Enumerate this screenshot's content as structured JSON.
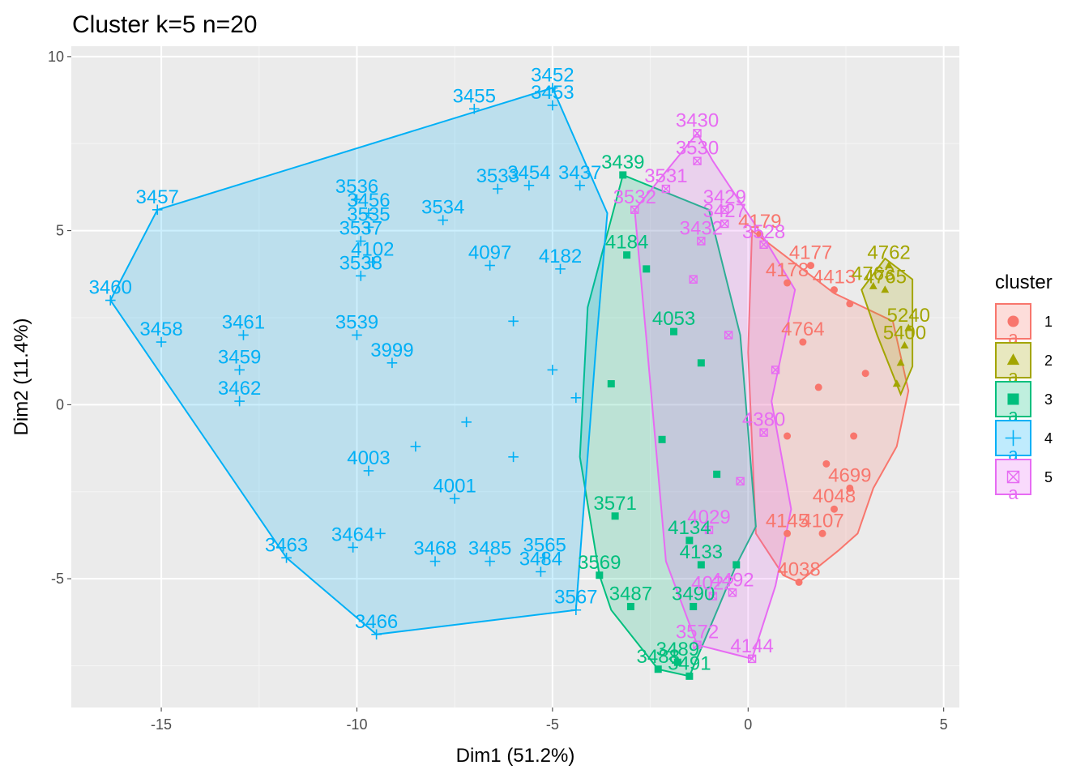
{
  "chart_data": {
    "type": "scatter",
    "title": "Cluster k=5 n=20",
    "xlabel": "Dim1 (51.2%)",
    "ylabel": "Dim2 (11.4%)",
    "xlim": [
      -17.3,
      5.4
    ],
    "ylim": [
      -8.7,
      10.3
    ],
    "xticks": [
      -15,
      -10,
      -5,
      0,
      5
    ],
    "yticks": [
      -5,
      0,
      5,
      10
    ],
    "grid": true,
    "legend": {
      "title": "cluster",
      "position": "right",
      "items": [
        {
          "key": "1",
          "color": "#F8766D",
          "shape": "circle"
        },
        {
          "key": "2",
          "color": "#A3A500",
          "shape": "triangle"
        },
        {
          "key": "3",
          "color": "#00BF7D",
          "shape": "square"
        },
        {
          "key": "4",
          "color": "#00B0F6",
          "shape": "plus"
        },
        {
          "key": "5",
          "color": "#E76BF3",
          "shape": "boxx"
        }
      ],
      "glyph_letter": "a"
    },
    "clusters": [
      {
        "id": "1",
        "hull": [
          [
            0.1,
            5.0
          ],
          [
            2.2,
            3.2
          ],
          [
            3.7,
            2.4
          ],
          [
            4.1,
            0.4
          ],
          [
            3.8,
            -1.2
          ],
          [
            3.2,
            -2.4
          ],
          [
            2.8,
            -3.7
          ],
          [
            2.3,
            -4.2
          ],
          [
            1.3,
            -5.1
          ],
          [
            0.9,
            -4.9
          ],
          [
            0.2,
            -3.7
          ],
          [
            0.0,
            1.5
          ]
        ],
        "points": [
          {
            "x": 0.3,
            "y": 4.9,
            "label": "4179"
          },
          {
            "x": 1.6,
            "y": 4.0,
            "label": "4177"
          },
          {
            "x": 1.0,
            "y": 3.5,
            "label": "4178"
          },
          {
            "x": 1.3,
            "y": -5.1,
            "label": "4038"
          },
          {
            "x": 1.0,
            "y": -3.7,
            "label": "4145"
          },
          {
            "x": 1.9,
            "y": -3.7,
            "label": "4107"
          },
          {
            "x": 2.6,
            "y": -2.4,
            "label": "4699"
          },
          {
            "x": 2.2,
            "y": -3.0,
            "label": "4048"
          },
          {
            "x": 1.4,
            "y": 1.8,
            "label": "4764"
          },
          {
            "x": 2.2,
            "y": 3.3,
            "label": "4413"
          },
          {
            "x": 2.6,
            "y": 2.9,
            "label": ""
          },
          {
            "x": 1.8,
            "y": 0.5,
            "label": ""
          },
          {
            "x": 3.0,
            "y": 0.9,
            "label": ""
          },
          {
            "x": 1.0,
            "y": -0.9,
            "label": ""
          },
          {
            "x": 2.7,
            "y": -0.9,
            "label": ""
          },
          {
            "x": 2.0,
            "y": -1.7,
            "label": ""
          }
        ]
      },
      {
        "id": "2",
        "hull": [
          [
            2.9,
            3.3
          ],
          [
            3.5,
            4.2
          ],
          [
            4.2,
            3.6
          ],
          [
            4.2,
            1.1
          ],
          [
            3.9,
            0.3
          ],
          [
            3.3,
            2.0
          ]
        ],
        "points": [
          {
            "x": 3.6,
            "y": 4.0,
            "label": "4762"
          },
          {
            "x": 3.2,
            "y": 3.4,
            "label": "4763"
          },
          {
            "x": 3.5,
            "y": 3.3,
            "label": "4765"
          },
          {
            "x": 4.1,
            "y": 2.2,
            "label": "5240"
          },
          {
            "x": 4.0,
            "y": 1.7,
            "label": "5400"
          },
          {
            "x": 3.9,
            "y": 1.2,
            "label": ""
          },
          {
            "x": 3.8,
            "y": 0.6,
            "label": ""
          }
        ]
      },
      {
        "id": "3",
        "hull": [
          [
            -3.2,
            6.6
          ],
          [
            -1.0,
            5.6
          ],
          [
            -0.2,
            2.0
          ],
          [
            0.2,
            -3.5
          ],
          [
            -0.3,
            -4.6
          ],
          [
            -1.5,
            -7.8
          ],
          [
            -2.3,
            -7.6
          ],
          [
            -3.5,
            -5.9
          ],
          [
            -3.8,
            -4.9
          ],
          [
            -4.3,
            -1.5
          ],
          [
            -4.1,
            2.8
          ]
        ],
        "points": [
          {
            "x": -3.2,
            "y": 6.6,
            "label": "3439"
          },
          {
            "x": -1.5,
            "y": -7.8,
            "label": "3491"
          },
          {
            "x": -2.3,
            "y": -7.6,
            "label": "3488"
          },
          {
            "x": -1.8,
            "y": -7.4,
            "label": "3489"
          },
          {
            "x": -3.0,
            "y": -5.8,
            "label": "3487"
          },
          {
            "x": -1.4,
            "y": -5.8,
            "label": "3490"
          },
          {
            "x": -3.8,
            "y": -4.9,
            "label": "3569"
          },
          {
            "x": -3.4,
            "y": -3.2,
            "label": "3571"
          },
          {
            "x": -1.5,
            "y": -3.9,
            "label": "4134"
          },
          {
            "x": -1.2,
            "y": -4.6,
            "label": "4133"
          },
          {
            "x": -0.3,
            "y": -4.6,
            "label": ""
          },
          {
            "x": -3.1,
            "y": 4.3,
            "label": "4184"
          },
          {
            "x": -1.9,
            "y": 2.1,
            "label": "4053"
          },
          {
            "x": -2.6,
            "y": 3.9,
            "label": ""
          },
          {
            "x": -3.5,
            "y": 0.6,
            "label": ""
          },
          {
            "x": -2.2,
            "y": -1.0,
            "label": ""
          },
          {
            "x": -1.2,
            "y": 1.2,
            "label": ""
          },
          {
            "x": -0.8,
            "y": -2.0,
            "label": ""
          }
        ]
      },
      {
        "id": "4",
        "hull": [
          [
            -16.3,
            3.0
          ],
          [
            -15.1,
            5.6
          ],
          [
            -5.0,
            9.1
          ],
          [
            -3.6,
            5.5
          ],
          [
            -3.9,
            1.5
          ],
          [
            -4.4,
            -5.9
          ],
          [
            -9.5,
            -6.6
          ],
          [
            -11.8,
            -4.4
          ]
        ],
        "points": [
          {
            "x": -5.0,
            "y": 9.1,
            "label": "3452"
          },
          {
            "x": -5.0,
            "y": 8.6,
            "label": "3453"
          },
          {
            "x": -7.0,
            "y": 8.5,
            "label": "3455"
          },
          {
            "x": -15.1,
            "y": 5.6,
            "label": "3457"
          },
          {
            "x": -16.3,
            "y": 3.0,
            "label": "3460"
          },
          {
            "x": -15.0,
            "y": 1.8,
            "label": "3458"
          },
          {
            "x": -12.9,
            "y": 2.0,
            "label": "3461"
          },
          {
            "x": -13.0,
            "y": 1.0,
            "label": "3459"
          },
          {
            "x": -13.0,
            "y": 0.1,
            "label": "3462"
          },
          {
            "x": -11.8,
            "y": -4.4,
            "label": "3463"
          },
          {
            "x": -9.5,
            "y": -6.6,
            "label": "3466"
          },
          {
            "x": -10.1,
            "y": -4.1,
            "label": "3464"
          },
          {
            "x": -8.0,
            "y": -4.5,
            "label": "3468"
          },
          {
            "x": -6.6,
            "y": -4.5,
            "label": "3485"
          },
          {
            "x": -5.3,
            "y": -4.8,
            "label": "3484"
          },
          {
            "x": -4.4,
            "y": -5.9,
            "label": "3567"
          },
          {
            "x": -5.2,
            "y": -4.4,
            "label": "3565"
          },
          {
            "x": -10.0,
            "y": 5.9,
            "label": "3536"
          },
          {
            "x": -9.7,
            "y": 5.5,
            "label": "3456"
          },
          {
            "x": -9.7,
            "y": 5.1,
            "label": "3535"
          },
          {
            "x": -9.9,
            "y": 4.7,
            "label": "3537"
          },
          {
            "x": -9.6,
            "y": 4.1,
            "label": "4102"
          },
          {
            "x": -9.9,
            "y": 3.7,
            "label": "3538"
          },
          {
            "x": -10.0,
            "y": 2.0,
            "label": "3539"
          },
          {
            "x": -7.8,
            "y": 5.3,
            "label": "3534"
          },
          {
            "x": -6.4,
            "y": 6.2,
            "label": "3533"
          },
          {
            "x": -5.6,
            "y": 6.3,
            "label": "3454"
          },
          {
            "x": -4.3,
            "y": 6.3,
            "label": "3437"
          },
          {
            "x": -9.1,
            "y": 1.2,
            "label": "3999"
          },
          {
            "x": -6.6,
            "y": 4.0,
            "label": "4097"
          },
          {
            "x": -4.8,
            "y": 3.9,
            "label": "4182"
          },
          {
            "x": -6.0,
            "y": 2.4,
            "label": ""
          },
          {
            "x": -5.0,
            "y": 1.0,
            "label": ""
          },
          {
            "x": -7.2,
            "y": -0.5,
            "label": ""
          },
          {
            "x": -6.0,
            "y": -1.5,
            "label": ""
          },
          {
            "x": -8.5,
            "y": -1.2,
            "label": ""
          },
          {
            "x": -4.4,
            "y": 0.2,
            "label": ""
          },
          {
            "x": -9.7,
            "y": -1.9,
            "label": "4003"
          },
          {
            "x": -7.5,
            "y": -2.7,
            "label": "4001"
          },
          {
            "x": -9.4,
            "y": -3.7,
            "label": ""
          }
        ]
      },
      {
        "id": "5",
        "hull": [
          [
            -2.9,
            5.6
          ],
          [
            -1.3,
            7.8
          ],
          [
            -0.9,
            7.0
          ],
          [
            0.4,
            4.8
          ],
          [
            1.2,
            3.3
          ],
          [
            0.6,
            0.1
          ],
          [
            1.1,
            -3.0
          ],
          [
            0.7,
            -5.2
          ],
          [
            0.1,
            -7.3
          ],
          [
            -1.3,
            -6.9
          ],
          [
            -2.1,
            -4.5
          ],
          [
            -2.6,
            1.9
          ]
        ],
        "points": [
          {
            "x": -1.3,
            "y": 7.8,
            "label": "3430"
          },
          {
            "x": -1.3,
            "y": 7.0,
            "label": "3530"
          },
          {
            "x": -2.1,
            "y": 6.2,
            "label": "3531"
          },
          {
            "x": -2.9,
            "y": 5.6,
            "label": "3532"
          },
          {
            "x": -0.6,
            "y": 5.6,
            "label": "3429"
          },
          {
            "x": -0.6,
            "y": 5.2,
            "label": "3427"
          },
          {
            "x": -1.2,
            "y": 4.7,
            "label": "3432"
          },
          {
            "x": 0.4,
            "y": 4.6,
            "label": "3528"
          },
          {
            "x": -1.3,
            "y": -6.9,
            "label": "3572"
          },
          {
            "x": 0.1,
            "y": -7.3,
            "label": "4144"
          },
          {
            "x": -0.9,
            "y": -5.5,
            "label": "4022"
          },
          {
            "x": -0.4,
            "y": -5.4,
            "label": "4492"
          },
          {
            "x": -1.0,
            "y": -3.6,
            "label": "4029"
          },
          {
            "x": 0.4,
            "y": -0.8,
            "label": "4380"
          },
          {
            "x": -0.5,
            "y": 2.0,
            "label": ""
          },
          {
            "x": -1.4,
            "y": 3.6,
            "label": ""
          },
          {
            "x": -0.2,
            "y": -2.2,
            "label": ""
          },
          {
            "x": 0.7,
            "y": 1.0,
            "label": ""
          }
        ]
      }
    ]
  }
}
